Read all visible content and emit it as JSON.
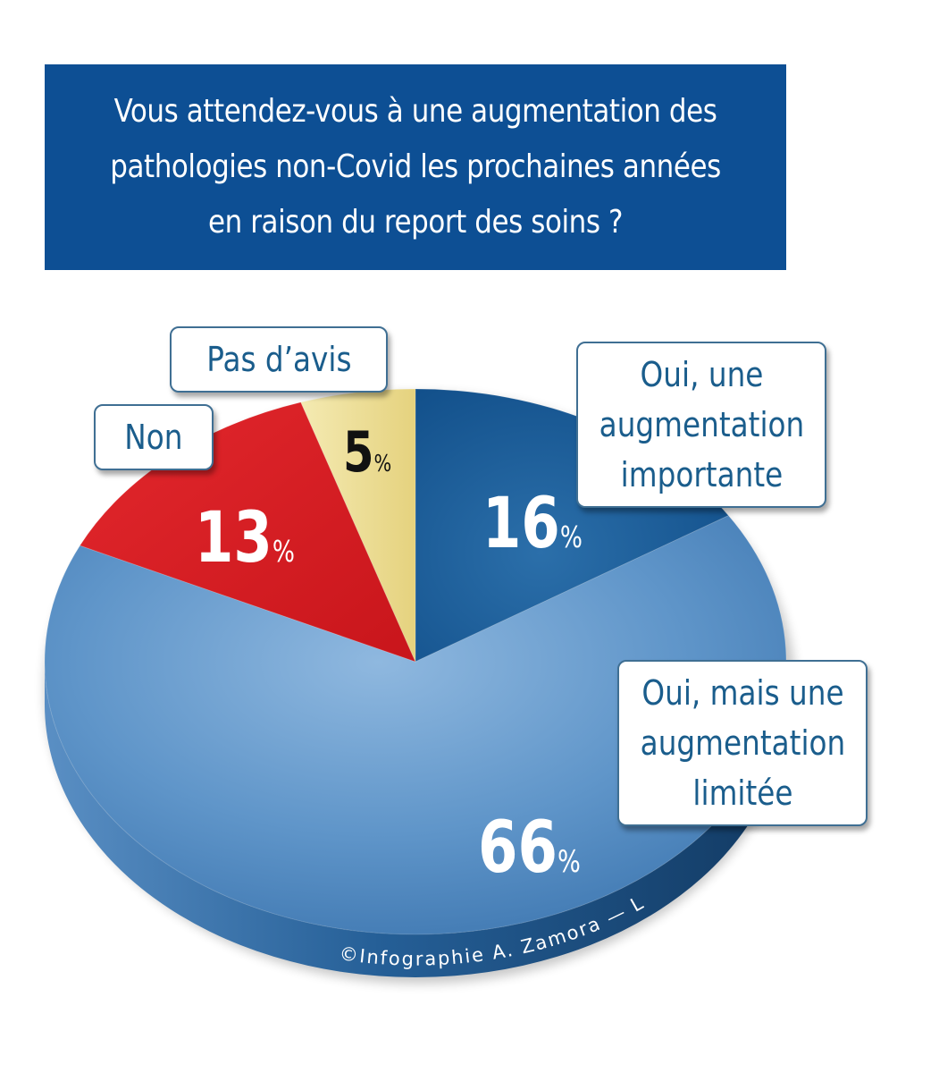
{
  "title": "Vous attendez-vous à une augmentation des\npathologies non-Covid les prochaines années\nen raison du report des soins ?",
  "chart_data": {
    "type": "pie",
    "title": "Vous attendez-vous à une augmentation des pathologies non-Covid les prochaines années en raison du report des soins ?",
    "categories": [
      "Oui, une augmentation importante",
      "Oui, mais une augmentation limitée",
      "Non",
      "Pas d’avis"
    ],
    "values": [
      16,
      66,
      13,
      5
    ],
    "unit": "%",
    "colors": [
      "#175a95",
      "#5f95c9",
      "#d91e24",
      "#ede09a"
    ]
  },
  "labels": {
    "important": "Oui, une\naugmentation\nimportante",
    "limited": "Oui, mais une\naugmentation\nlimitée",
    "no": "Non",
    "no_opinion": "Pas d’avis"
  },
  "percent_labels": {
    "important": "16",
    "limited": "66",
    "no": "13",
    "no_opinion": "5",
    "symbol": "%"
  },
  "credit": "©Infographie A. Zamora — LE VIF/L’EXPRESS"
}
